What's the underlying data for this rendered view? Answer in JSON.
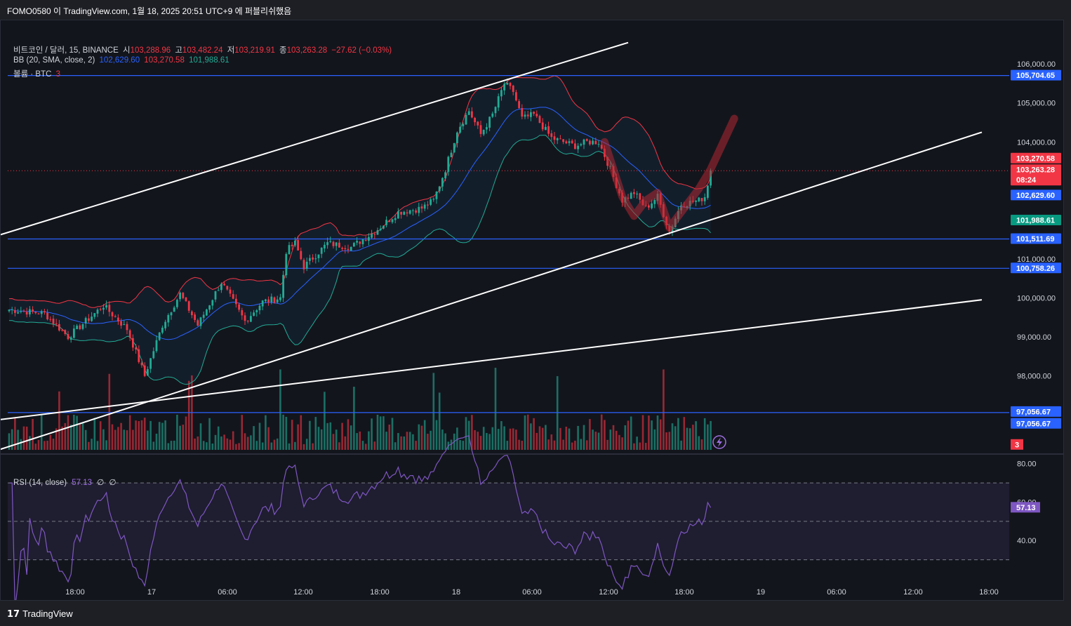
{
  "header": {
    "title": "FOMO0580 이 TradingView.com, 1월 18, 2025 20:51 UTC+9 에 퍼블리쉬했음"
  },
  "legend": {
    "symbol": "비트코인 / 달러, 15, BINANCE",
    "open_label": "시",
    "open": "103,288.96",
    "high_label": "고",
    "high": "103,482.24",
    "low_label": "저",
    "low": "103,219.91",
    "close_label": "종",
    "close": "103,263.28",
    "change": "−27.62 (−0.03%)",
    "bb_label": "BB (20, SMA, close, 2)",
    "bb_basis": "102,629.60",
    "bb_upper": "103,270.58",
    "bb_lower": "101,988.61",
    "vol_label": "볼륨 · BTC",
    "vol_value": "3"
  },
  "rsi_legend": {
    "label": "RSI (14, close)",
    "value": "57.13",
    "extra1": "∅",
    "extra2": "∅"
  },
  "footer": {
    "brand": "TradingView",
    "brand_icon": "tradingview-logo-icon"
  },
  "colors": {
    "up": "#22ab94",
    "down": "#f23645",
    "bb_basis": "#2962ff",
    "bb_upper": "#f23645",
    "bb_lower": "#22ab94",
    "level": "#2962ff",
    "rsi": "#7e57c2"
  },
  "chart_data": [
    {
      "type": "candlestick",
      "symbol": "BTCUSD",
      "interval": "15",
      "y_ticks": [
        98000,
        99000,
        100000,
        101000,
        104000,
        105000,
        106000
      ],
      "y_tick_labels": [
        "98,000.00",
        "99,000.00",
        "100,000.00",
        "101,000.00",
        "104,000.00",
        "105,000.00",
        "106,000.00"
      ],
      "ylim": [
        96100,
        106400
      ],
      "x_ticks": [
        "18:00",
        "17",
        "06:00",
        "12:00",
        "18:00",
        "18",
        "06:00",
        "12:00",
        "18:00",
        "19",
        "06:00",
        "12:00",
        "18:00"
      ],
      "horizontal_levels": [
        105704.65,
        101511.69,
        100758.26,
        97056.67
      ],
      "horizontal_level_labels": [
        "105,704.65",
        "101,511.69",
        "100,758.26",
        "97,056.67"
      ],
      "price_tags": [
        {
          "label": "103,270.58",
          "value": 103270.58,
          "color": "#f23645"
        },
        {
          "label": "103,263.28",
          "value": 103263.28,
          "color": "#f23645",
          "sub": "08:24"
        },
        {
          "label": "102,629.60",
          "value": 102629.6,
          "color": "#2962ff"
        },
        {
          "label": "101,988.61",
          "value": 101988.61,
          "color": "#089981"
        },
        {
          "label": "97,056.67",
          "value": 96770,
          "color": "#2962ff"
        },
        {
          "label": "3",
          "value": 96230,
          "color": "#f23645"
        }
      ],
      "trendlines": [
        {
          "from": [
            -6,
            101550
          ],
          "to": [
            210,
            106550
          ]
        },
        {
          "from": [
            -6,
            96040
          ],
          "to": [
            330,
            104250
          ]
        },
        {
          "from": [
            -6,
            96850
          ],
          "to": [
            330,
            99950
          ]
        }
      ],
      "price_anchors": [
        {
          "i": 0,
          "p": 99700
        },
        {
          "i": 12,
          "p": 99600
        },
        {
          "i": 20,
          "p": 99000
        },
        {
          "i": 32,
          "p": 99800
        },
        {
          "i": 40,
          "p": 99200
        },
        {
          "i": 46,
          "p": 98000
        },
        {
          "i": 52,
          "p": 99300
        },
        {
          "i": 58,
          "p": 100100
        },
        {
          "i": 64,
          "p": 99300
        },
        {
          "i": 72,
          "p": 100400
        },
        {
          "i": 80,
          "p": 99400
        },
        {
          "i": 86,
          "p": 99900
        },
        {
          "i": 92,
          "p": 100000
        },
        {
          "i": 94,
          "p": 101200
        },
        {
          "i": 97,
          "p": 101400
        },
        {
          "i": 100,
          "p": 100800
        },
        {
          "i": 108,
          "p": 101400
        },
        {
          "i": 116,
          "p": 101300
        },
        {
          "i": 124,
          "p": 101700
        },
        {
          "i": 132,
          "p": 102200
        },
        {
          "i": 140,
          "p": 102300
        },
        {
          "i": 144,
          "p": 102500
        },
        {
          "i": 148,
          "p": 103300
        },
        {
          "i": 152,
          "p": 104300
        },
        {
          "i": 156,
          "p": 104800
        },
        {
          "i": 160,
          "p": 104200
        },
        {
          "i": 164,
          "p": 104700
        },
        {
          "i": 168,
          "p": 105500
        },
        {
          "i": 171,
          "p": 105300
        },
        {
          "i": 174,
          "p": 104600
        },
        {
          "i": 178,
          "p": 104700
        },
        {
          "i": 184,
          "p": 104100
        },
        {
          "i": 192,
          "p": 103900
        },
        {
          "i": 196,
          "p": 104000
        },
        {
          "i": 200,
          "p": 104000
        },
        {
          "i": 204,
          "p": 103300
        },
        {
          "i": 208,
          "p": 102500
        },
        {
          "i": 212,
          "p": 102700
        },
        {
          "i": 216,
          "p": 102300
        },
        {
          "i": 220,
          "p": 102600
        },
        {
          "i": 224,
          "p": 101700
        },
        {
          "i": 228,
          "p": 102400
        },
        {
          "i": 234,
          "p": 102500
        },
        {
          "i": 236,
          "p": 102600
        },
        {
          "i": 238,
          "p": 103263
        }
      ],
      "volume_ylim": [
        0,
        600
      ]
    },
    {
      "type": "line",
      "name": "RSI (14, close)",
      "ylim": [
        20,
        85
      ],
      "y_ticks": [
        40,
        60,
        80
      ],
      "y_tick_labels": [
        "40.00",
        "60.00",
        "80.00"
      ],
      "bands": [
        70,
        50,
        30
      ],
      "last_value": 57.13,
      "last_label": "57.13"
    }
  ]
}
